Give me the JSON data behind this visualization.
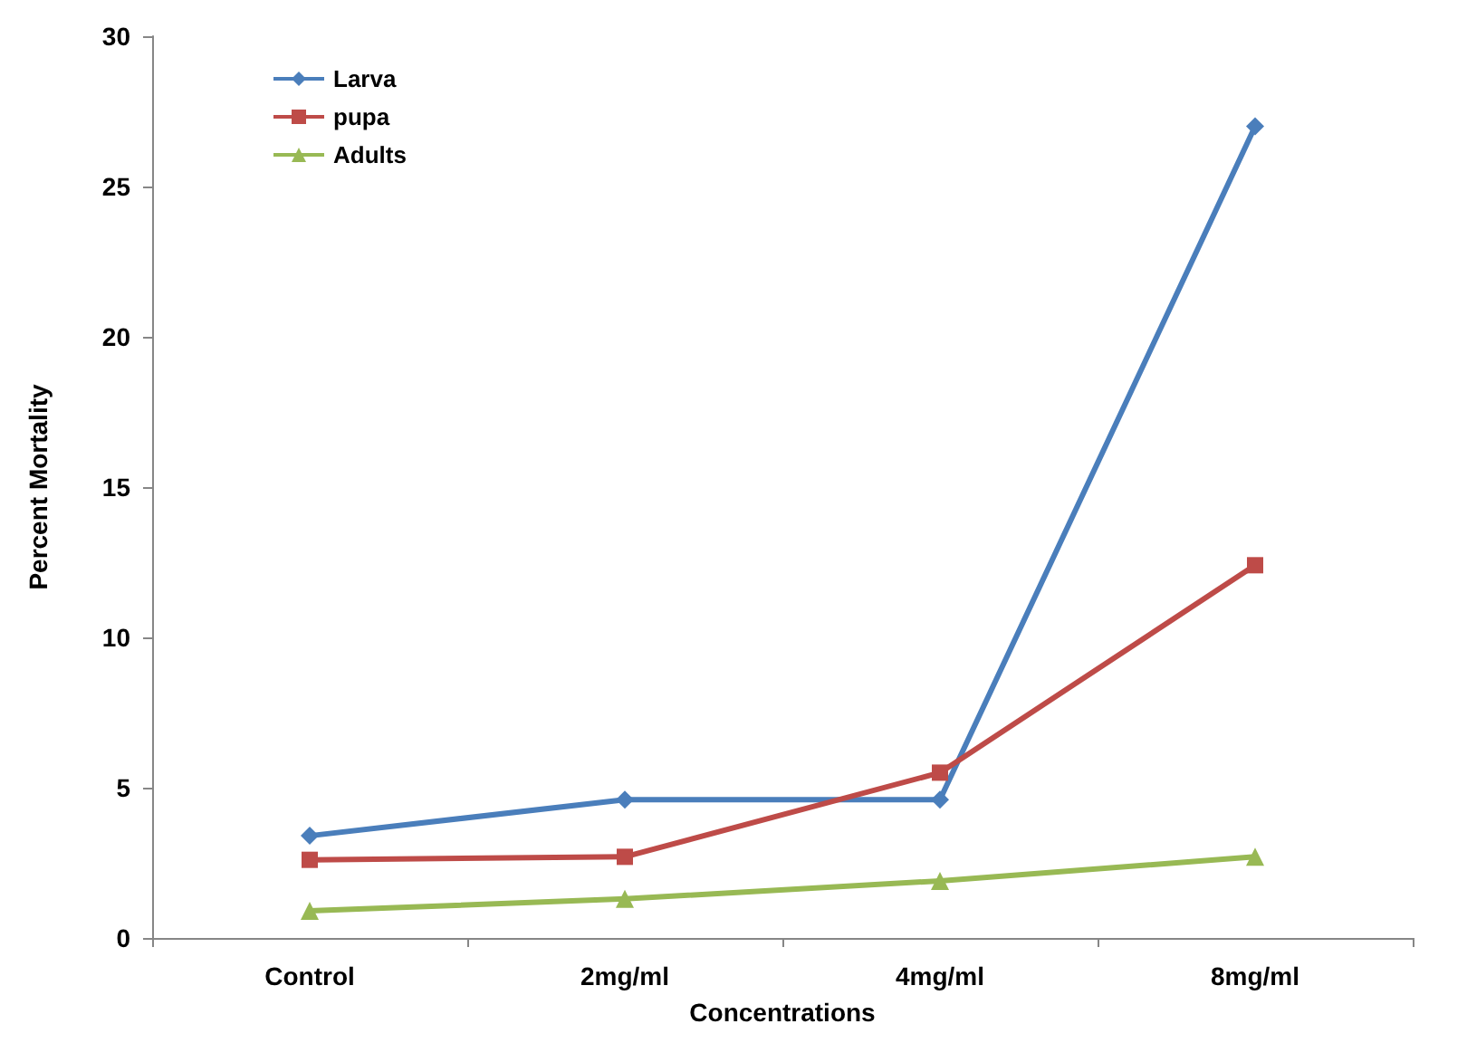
{
  "chart_data": {
    "type": "line",
    "xlabel": "Concentrations",
    "ylabel": "Percent Mortality",
    "categories": [
      "Control",
      "2mg/ml",
      "4mg/ml",
      "8mg/ml"
    ],
    "series": [
      {
        "name": "Larva",
        "color": "#4a7ebb",
        "marker": "diamond",
        "values": [
          3.4,
          4.6,
          4.6,
          27.0
        ]
      },
      {
        "name": "pupa",
        "color": "#be4b48",
        "marker": "square",
        "values": [
          2.6,
          2.7,
          5.5,
          12.4
        ]
      },
      {
        "name": "Adults",
        "color": "#98b954",
        "marker": "triangle",
        "values": [
          0.9,
          1.3,
          1.9,
          2.7
        ]
      }
    ],
    "ylim": [
      0,
      30
    ],
    "yticks": [
      0,
      5,
      10,
      15,
      20,
      25,
      30
    ],
    "grid": false,
    "legend": "top left"
  }
}
